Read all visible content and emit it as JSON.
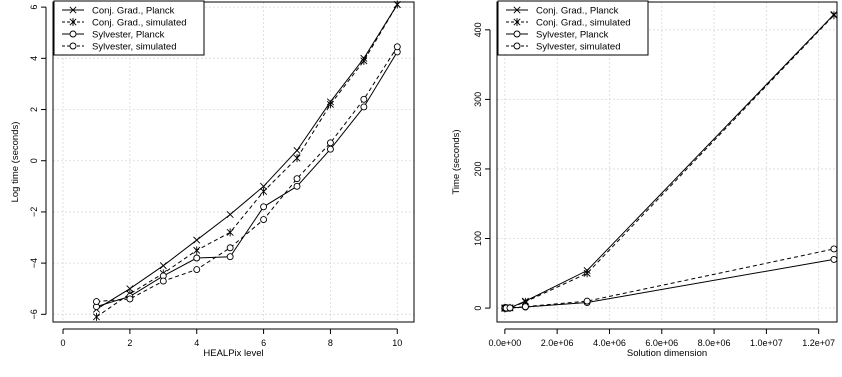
{
  "chart_data": [
    {
      "type": "line",
      "title": "",
      "xlabel": "HEALPix level",
      "ylabel": "Log time (seconds)",
      "xlim": [
        0,
        10
      ],
      "ylim": [
        -6,
        6
      ],
      "x_ticks": [
        "0",
        "2",
        "4",
        "6",
        "8",
        "10"
      ],
      "y_ticks": [
        "−6",
        "−4",
        "−2",
        "0",
        "2",
        "4",
        "6"
      ],
      "grid": true,
      "legend_position": "top-left",
      "x": [
        1,
        2,
        3,
        4,
        5,
        6,
        7,
        8,
        9,
        10
      ],
      "series": [
        {
          "name": "Conj. Grad., Planck",
          "line": "solid",
          "marker": "x",
          "values": [
            -5.8,
            -5.0,
            -4.1,
            -3.1,
            -2.1,
            -1.0,
            0.4,
            2.3,
            4.0,
            6.1
          ]
        },
        {
          "name": "Conj. Grad., simulated",
          "line": "dashed",
          "marker": "asterisk",
          "values": [
            -6.1,
            -5.2,
            -4.4,
            -3.5,
            -2.8,
            -1.2,
            0.1,
            2.2,
            3.9,
            6.1
          ]
        },
        {
          "name": "Sylvester, Planck",
          "line": "solid",
          "marker": "circle",
          "values": [
            -5.7,
            -5.3,
            -4.5,
            -3.8,
            -3.75,
            -1.8,
            -1.0,
            0.45,
            2.1,
            4.25
          ]
        },
        {
          "name": "Sylvester, simulated",
          "line": "dashed",
          "marker": "circle",
          "values": [
            -5.5,
            -5.4,
            -4.7,
            -4.25,
            -3.4,
            -2.3,
            -0.7,
            0.7,
            2.4,
            4.45
          ]
        }
      ]
    },
    {
      "type": "line",
      "title": "",
      "xlabel": "Solution dimension",
      "ylabel": "Time (seconds)",
      "xlim": [
        0,
        12600000
      ],
      "ylim": [
        0,
        430
      ],
      "x_ticks": [
        "0.0e+00",
        "2.0e+06",
        "4.0e+06",
        "6.0e+06",
        "8.0e+06",
        "1.0e+07",
        "1.2e+07"
      ],
      "y_ticks": [
        "0",
        "100",
        "200",
        "300",
        "400"
      ],
      "grid": true,
      "legend_position": "top-left",
      "x": [
        12,
        48,
        192,
        768,
        3072,
        12288,
        49152,
        196608,
        786432,
        3145728,
        12582912
      ],
      "series": [
        {
          "name": "Conj. Grad., Planck",
          "line": "solid",
          "marker": "x",
          "values": [
            0,
            0,
            0,
            0,
            0,
            0,
            0.1,
            0.4,
            10,
            54,
            422
          ]
        },
        {
          "name": "Conj. Grad., simulated",
          "line": "dashed",
          "marker": "asterisk",
          "values": [
            0,
            0,
            0,
            0,
            0,
            0,
            0.1,
            0.3,
            9,
            50,
            421
          ]
        },
        {
          "name": "Sylvester, Planck",
          "line": "solid",
          "marker": "circle",
          "values": [
            0,
            0,
            0,
            0,
            0,
            0,
            0.1,
            0.2,
            1.5,
            8,
            70
          ]
        },
        {
          "name": "Sylvester, simulated",
          "line": "dashed",
          "marker": "circle",
          "values": [
            0,
            0,
            0,
            0,
            0,
            0,
            0.1,
            0.3,
            2,
            10,
            85
          ]
        }
      ]
    }
  ]
}
